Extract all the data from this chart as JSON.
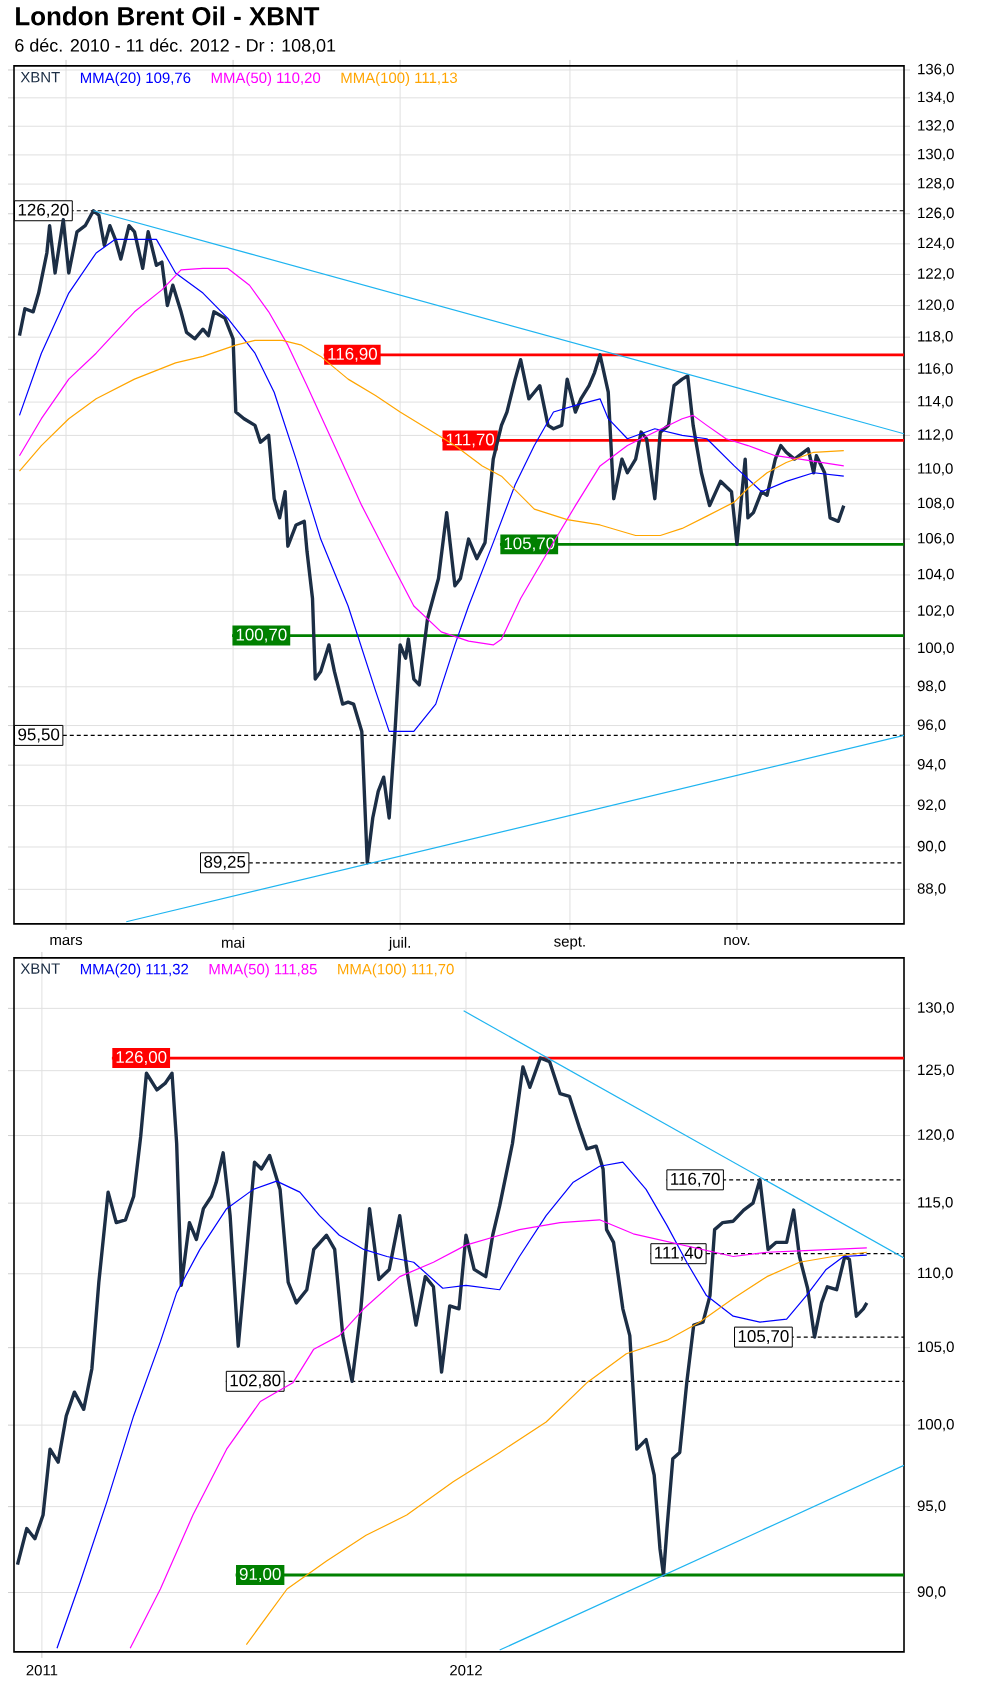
{
  "chart_data": [
    {
      "type": "line",
      "title": "London Brent Oil - XBNT",
      "subtitle": "6 déc. 2010 - 11 déc. 2012 - Dr : 108,01",
      "log": true,
      "grid": true,
      "legend": "top left",
      "xlim": [
        "2012-02-11",
        "2013-01-01"
      ],
      "ylim": [
        86.4,
        136.3
      ],
      "xticks": [
        {
          "value": "2012-03-01",
          "label": "mars"
        },
        {
          "value": "2012-05-01",
          "label": "mai"
        },
        {
          "value": "2012-07-01",
          "label": "juil."
        },
        {
          "value": "2012-09-01",
          "label": "sept."
        },
        {
          "value": "2012-11-01",
          "label": "nov."
        }
      ],
      "yticks": [
        {
          "value": 88,
          "label": "88,0"
        },
        {
          "value": 90,
          "label": "90,0"
        },
        {
          "value": 92,
          "label": "92,0"
        },
        {
          "value": 94,
          "label": "94,0"
        },
        {
          "value": 96,
          "label": "96,0"
        },
        {
          "value": 98,
          "label": "98,0"
        },
        {
          "value": 100,
          "label": "100,0"
        },
        {
          "value": 102,
          "label": "102,0"
        },
        {
          "value": 104,
          "label": "104,0"
        },
        {
          "value": 106,
          "label": "106,0"
        },
        {
          "value": 108,
          "label": "108,0"
        },
        {
          "value": 110,
          "label": "110,0"
        },
        {
          "value": 112,
          "label": "112,0"
        },
        {
          "value": 114,
          "label": "114,0"
        },
        {
          "value": 116,
          "label": "116,0"
        },
        {
          "value": 118,
          "label": "118,0"
        },
        {
          "value": 120,
          "label": "120,0"
        },
        {
          "value": 122,
          "label": "122,0"
        },
        {
          "value": 124,
          "label": "124,0"
        },
        {
          "value": 126,
          "label": "126,0"
        },
        {
          "value": 128,
          "label": "128,0"
        },
        {
          "value": 130,
          "label": "130,0"
        },
        {
          "value": 132,
          "label": "132,0"
        },
        {
          "value": 134,
          "label": "134,0"
        },
        {
          "value": 136,
          "label": "136,0"
        }
      ],
      "series": [
        {
          "name": "XBNT",
          "color": "#1c2e45",
          "x": [
            "2012-02-13",
            "2012-02-15",
            "2012-02-18",
            "2012-02-20",
            "2012-02-23",
            "2012-02-24",
            "2012-02-26",
            "2012-02-29",
            "2012-03-02",
            "2012-03-05",
            "2012-03-08",
            "2012-03-11",
            "2012-03-13",
            "2012-03-15",
            "2012-03-17",
            "2012-03-19",
            "2012-03-21",
            "2012-03-24",
            "2012-03-26",
            "2012-03-29",
            "2012-03-31",
            "2012-04-03",
            "2012-04-05",
            "2012-04-07",
            "2012-04-09",
            "2012-04-12",
            "2012-04-14",
            "2012-04-17",
            "2012-04-20",
            "2012-04-22",
            "2012-04-24",
            "2012-04-28",
            "2012-05-01",
            "2012-05-02",
            "2012-05-05",
            "2012-05-09",
            "2012-05-11",
            "2012-05-14",
            "2012-05-16",
            "2012-05-18",
            "2012-05-20",
            "2012-05-21",
            "2012-05-24",
            "2012-05-27",
            "2012-05-28",
            "2012-05-30",
            "2012-05-31",
            "2012-06-02",
            "2012-06-05",
            "2012-06-07",
            "2012-06-10",
            "2012-06-12",
            "2012-06-14",
            "2012-06-17",
            "2012-06-19",
            "2012-06-21",
            "2012-06-23",
            "2012-06-25",
            "2012-06-27",
            "2012-06-29",
            "2012-07-01",
            "2012-07-03",
            "2012-07-04",
            "2012-07-06",
            "2012-07-08",
            "2012-07-11",
            "2012-07-15",
            "2012-07-18",
            "2012-07-21",
            "2012-07-23",
            "2012-07-26",
            "2012-07-29",
            "2012-08-01",
            "2012-08-04",
            "2012-08-07",
            "2012-08-09",
            "2012-08-12",
            "2012-08-14",
            "2012-08-17",
            "2012-08-19",
            "2012-08-21",
            "2012-08-24",
            "2012-08-26",
            "2012-08-29",
            "2012-08-31",
            "2012-09-03",
            "2012-09-05",
            "2012-09-08",
            "2012-09-10",
            "2012-09-12",
            "2012-09-15",
            "2012-09-17",
            "2012-09-20",
            "2012-09-22",
            "2012-09-25",
            "2012-09-27",
            "2012-09-29",
            "2012-10-02",
            "2012-10-04",
            "2012-10-07",
            "2012-10-09",
            "2012-10-12",
            "2012-10-14",
            "2012-10-16",
            "2012-10-19",
            "2012-10-22",
            "2012-10-26",
            "2012-10-30",
            "2012-11-01",
            "2012-11-04",
            "2012-11-05",
            "2012-11-07",
            "2012-11-10",
            "2012-11-12",
            "2012-11-15",
            "2012-11-17",
            "2012-11-19",
            "2012-11-22",
            "2012-11-27",
            "2012-11-29",
            "2012-11-30",
            "2012-12-03",
            "2012-12-05",
            "2012-12-08",
            "2012-12-10"
          ],
          "values": [
            118.1,
            119.8,
            119.6,
            120.8,
            123.4,
            125.2,
            122.1,
            125.6,
            122.1,
            124.8,
            125.2,
            126.2,
            125.9,
            123.9,
            125.2,
            124.3,
            123.0,
            125.2,
            124.8,
            122.4,
            124.8,
            122.6,
            122.8,
            120.0,
            121.3,
            119.6,
            118.3,
            117.9,
            118.5,
            118.1,
            119.6,
            119.2,
            117.9,
            113.4,
            113.0,
            112.6,
            111.6,
            112.0,
            108.3,
            107.2,
            108.7,
            105.6,
            106.8,
            107.0,
            105.3,
            102.7,
            98.4,
            98.8,
            100.2,
            98.8,
            97.1,
            97.2,
            97.1,
            95.7,
            89.25,
            91.4,
            92.7,
            93.4,
            91.4,
            95.4,
            100.2,
            99.5,
            100.5,
            98.4,
            98.1,
            101.6,
            103.8,
            107.5,
            103.4,
            103.8,
            106.0,
            104.9,
            105.8,
            110.6,
            112.6,
            113.4,
            115.4,
            116.6,
            114.2,
            114.6,
            115.0,
            112.6,
            112.4,
            112.6,
            115.4,
            113.4,
            114.2,
            115.0,
            115.8,
            116.9,
            114.6,
            108.3,
            110.6,
            109.8,
            110.6,
            112.2,
            111.8,
            108.3,
            112.2,
            112.6,
            115.0,
            115.4,
            115.6,
            112.6,
            109.8,
            107.9,
            109.3,
            108.7,
            105.7,
            110.6,
            107.2,
            107.5,
            108.7,
            108.5,
            110.6,
            111.4,
            111.0,
            110.6,
            111.2,
            109.8,
            110.8,
            109.8,
            107.2,
            107.0,
            107.9
          ]
        },
        {
          "name": "MMA(20) 109,76",
          "color": "#0000ff",
          "x": [
            "2012-02-13",
            "2012-02-21",
            "2012-03-02",
            "2012-03-12",
            "2012-03-19",
            "2012-03-26",
            "2012-04-03",
            "2012-04-10",
            "2012-04-20",
            "2012-04-29",
            "2012-05-09",
            "2012-05-16",
            "2012-05-24",
            "2012-06-02",
            "2012-06-12",
            "2012-06-22",
            "2012-06-27",
            "2012-07-06",
            "2012-07-14",
            "2012-07-21",
            "2012-07-26",
            "2012-08-04",
            "2012-08-12",
            "2012-08-19",
            "2012-08-26",
            "2012-09-03",
            "2012-09-12",
            "2012-09-15",
            "2012-09-22",
            "2012-10-02",
            "2012-10-12",
            "2012-10-21",
            "2012-10-31",
            "2012-11-10",
            "2012-11-19",
            "2012-11-29",
            "2012-12-10"
          ],
          "values": [
            113.2,
            117.0,
            120.8,
            123.4,
            124.3,
            124.3,
            124.3,
            122.1,
            120.8,
            119.2,
            117.0,
            114.6,
            110.6,
            106.0,
            102.3,
            97.8,
            95.7,
            95.7,
            97.1,
            100.2,
            102.3,
            105.8,
            109.1,
            111.4,
            113.4,
            113.8,
            114.2,
            113.0,
            111.8,
            112.4,
            112.0,
            111.8,
            110.2,
            108.7,
            109.3,
            109.8,
            109.6
          ]
        },
        {
          "name": "MMA(50) 110,20",
          "color": "#ff00ff",
          "x": [
            "2012-02-13",
            "2012-02-21",
            "2012-03-02",
            "2012-03-12",
            "2012-03-26",
            "2012-04-05",
            "2012-04-12",
            "2012-04-20",
            "2012-04-29",
            "2012-05-07",
            "2012-05-14",
            "2012-05-21",
            "2012-05-28",
            "2012-06-07",
            "2012-06-17",
            "2012-06-27",
            "2012-07-06",
            "2012-07-16",
            "2012-07-26",
            "2012-08-04",
            "2012-08-07",
            "2012-08-14",
            "2012-08-24",
            "2012-09-03",
            "2012-09-12",
            "2012-09-22",
            "2012-10-02",
            "2012-10-12",
            "2012-10-16",
            "2012-10-21",
            "2012-10-28",
            "2012-11-05",
            "2012-11-15",
            "2012-11-24",
            "2012-12-10"
          ],
          "values": [
            110.8,
            113.0,
            115.4,
            117.0,
            119.6,
            121.0,
            122.3,
            122.4,
            122.4,
            121.3,
            119.6,
            117.5,
            115.0,
            111.4,
            107.9,
            104.9,
            102.3,
            100.9,
            100.4,
            100.2,
            100.5,
            102.7,
            105.3,
            107.9,
            110.2,
            111.4,
            112.2,
            113.0,
            113.2,
            112.6,
            111.8,
            111.4,
            110.8,
            110.6,
            110.2
          ]
        },
        {
          "name": "MMA(100) 111,13",
          "color": "#ffa500",
          "x": [
            "2012-02-13",
            "2012-02-21",
            "2012-03-02",
            "2012-03-12",
            "2012-03-26",
            "2012-04-10",
            "2012-04-20",
            "2012-05-02",
            "2012-05-09",
            "2012-05-19",
            "2012-05-26",
            "2012-06-02",
            "2012-06-12",
            "2012-06-22",
            "2012-07-01",
            "2012-07-11",
            "2012-07-21",
            "2012-07-31",
            "2012-08-07",
            "2012-08-19",
            "2012-08-31",
            "2012-09-12",
            "2012-09-25",
            "2012-10-04",
            "2012-10-12",
            "2012-10-21",
            "2012-10-31",
            "2012-11-05",
            "2012-11-12",
            "2012-11-19",
            "2012-11-29",
            "2012-12-10"
          ],
          "values": [
            109.9,
            111.4,
            113.0,
            114.2,
            115.4,
            116.4,
            116.8,
            117.5,
            117.8,
            117.8,
            117.5,
            116.8,
            115.4,
            114.4,
            113.4,
            112.4,
            111.4,
            110.2,
            109.6,
            107.7,
            107.1,
            106.8,
            106.2,
            106.2,
            106.6,
            107.3,
            108.1,
            108.9,
            109.8,
            110.4,
            111.0,
            111.1
          ]
        },
        {
          "color": "#1eb4f0",
          "x": [
            "2012-03-11",
            "2013-01-01"
          ],
          "values": [
            126.2,
            112.1
          ]
        },
        {
          "color": "#1eb4f0",
          "x": [
            "2012-03-23",
            "2013-01-01"
          ],
          "values": [
            86.5,
            95.5
          ]
        }
      ],
      "ref_lines": [
        {
          "axis": "y",
          "value": 126.2,
          "label": "126,20",
          "color": "#000000",
          "line_style": "dashed"
        },
        {
          "axis": "y",
          "value": 116.9,
          "label": "116,90",
          "color": "#ff0000",
          "line_style": "solid"
        },
        {
          "axis": "y",
          "value": 111.7,
          "label": "111,70",
          "color": "#ff0000",
          "line_style": "solid"
        },
        {
          "axis": "y",
          "value": 105.7,
          "label": "105,70",
          "color": "#008000",
          "line_style": "solid"
        },
        {
          "axis": "y",
          "value": 100.7,
          "label": "100,70",
          "color": "#008000",
          "line_style": "solid"
        },
        {
          "axis": "y",
          "value": 95.5,
          "label": "95,50",
          "color": "#000000",
          "line_style": "dashed"
        },
        {
          "axis": "y",
          "value": 89.25,
          "label": "89,25",
          "color": "#000000",
          "line_style": "dashed"
        }
      ]
    },
    {
      "type": "line",
      "log": true,
      "grid": true,
      "legend": "top left",
      "xlim": [
        "2010-12-08",
        "2013-01-12"
      ],
      "ylim": [
        86.7,
        134.2
      ],
      "xticks": [
        {
          "value": "2011-01-01",
          "label": "2011"
        },
        {
          "value": "2012-01-01",
          "label": "2012"
        }
      ],
      "yticks": [
        {
          "value": 90,
          "label": "90,0"
        },
        {
          "value": 95,
          "label": "95,0"
        },
        {
          "value": 100,
          "label": "100,0"
        },
        {
          "value": 105,
          "label": "105,0"
        },
        {
          "value": 110,
          "label": "110,0"
        },
        {
          "value": 115,
          "label": "115,0"
        },
        {
          "value": 120,
          "label": "120,0"
        },
        {
          "value": 125,
          "label": "125,0"
        },
        {
          "value": 130,
          "label": "130,0"
        }
      ],
      "series": [
        {
          "name": "XBNT",
          "color": "#1c2e45",
          "x": [
            "2010-12-11",
            "2010-12-19",
            "2010-12-26",
            "2011-01-02",
            "2011-01-08",
            "2011-01-15",
            "2011-01-22",
            "2011-01-29",
            "2011-02-06",
            "2011-02-13",
            "2011-02-19",
            "2011-02-27",
            "2011-03-06",
            "2011-03-14",
            "2011-03-21",
            "2011-03-27",
            "2011-04-01",
            "2011-04-10",
            "2011-04-17",
            "2011-04-23",
            "2011-04-27",
            "2011-05-01",
            "2011-05-08",
            "2011-05-14",
            "2011-05-20",
            "2011-05-27",
            "2011-05-31",
            "2011-06-06",
            "2011-06-12",
            "2011-06-19",
            "2011-06-25",
            "2011-07-03",
            "2011-07-09",
            "2011-07-16",
            "2011-07-25",
            "2011-08-01",
            "2011-08-08",
            "2011-08-17",
            "2011-08-23",
            "2011-09-03",
            "2011-09-10",
            "2011-09-17",
            "2011-09-25",
            "2011-10-02",
            "2011-10-10",
            "2011-10-18",
            "2011-10-27",
            "2011-11-05",
            "2011-11-12",
            "2011-11-19",
            "2011-11-27",
            "2011-12-04",
            "2011-12-11",
            "2011-12-18",
            "2011-12-26",
            "2012-01-01",
            "2012-01-08",
            "2012-01-18",
            "2012-01-24",
            "2012-01-30",
            "2012-02-10",
            "2012-02-19",
            "2012-02-25",
            "2012-03-05",
            "2012-03-13",
            "2012-03-22",
            "2012-03-30",
            "2012-04-08",
            "2012-04-14",
            "2012-04-22",
            "2012-04-28",
            "2012-05-01",
            "2012-05-07",
            "2012-05-15",
            "2012-05-21",
            "2012-05-27",
            "2012-06-04",
            "2012-06-11",
            "2012-06-16",
            "2012-06-19",
            "2012-06-22",
            "2012-06-27",
            "2012-07-03",
            "2012-07-09",
            "2012-07-15",
            "2012-07-23",
            "2012-07-29",
            "2012-08-02",
            "2012-08-09",
            "2012-08-18",
            "2012-08-27",
            "2012-09-04",
            "2012-09-10",
            "2012-09-17",
            "2012-09-24",
            "2012-10-03",
            "2012-10-09",
            "2012-10-14",
            "2012-10-21",
            "2012-10-27",
            "2012-11-02",
            "2012-11-07",
            "2012-11-15",
            "2012-11-22",
            "2012-11-26",
            "2012-12-02",
            "2012-12-08",
            "2012-12-11"
          ],
          "values": [
            91.6,
            93.7,
            93.1,
            94.5,
            98.5,
            97.7,
            100.6,
            102.1,
            101.0,
            103.6,
            109.4,
            115.8,
            113.6,
            113.8,
            115.5,
            119.9,
            124.8,
            123.5,
            124.0,
            124.8,
            119.4,
            109.2,
            113.6,
            112.4,
            114.6,
            115.5,
            116.5,
            118.7,
            114.1,
            105.1,
            110.3,
            118.0,
            117.5,
            118.5,
            116.0,
            109.4,
            108.0,
            108.9,
            111.7,
            112.7,
            111.7,
            105.8,
            102.8,
            107.1,
            114.6,
            109.6,
            110.3,
            114.1,
            109.8,
            106.5,
            109.8,
            109.1,
            103.4,
            107.8,
            107.6,
            112.7,
            110.3,
            109.8,
            112.7,
            114.8,
            119.4,
            125.3,
            123.7,
            126.0,
            125.7,
            123.2,
            123.0,
            120.5,
            119.0,
            119.2,
            117.5,
            113.1,
            112.2,
            107.6,
            105.8,
            98.5,
            99.1,
            96.9,
            92.5,
            91.0,
            93.7,
            97.9,
            98.3,
            102.7,
            106.5,
            106.7,
            108.5,
            113.1,
            113.6,
            113.7,
            114.5,
            115.0,
            116.7,
            111.7,
            112.2,
            112.2,
            114.5,
            111.2,
            109.0,
            105.7,
            108.0,
            109.1,
            108.9,
            111.2,
            111.0,
            107.1,
            107.6,
            108.0
          ]
        },
        {
          "name": "MMA(20) 111,32",
          "color": "#0000ff",
          "x": [
            "2011-01-14",
            "2011-02-03",
            "2011-02-26",
            "2011-03-21",
            "2011-04-13",
            "2011-04-27",
            "2011-05-17",
            "2011-06-09",
            "2011-07-02",
            "2011-07-22",
            "2011-08-11",
            "2011-08-28",
            "2011-09-14",
            "2011-10-05",
            "2011-10-25",
            "2011-11-17",
            "2011-12-12",
            "2012-01-01",
            "2012-01-30",
            "2012-02-16",
            "2012-03-10",
            "2012-04-02",
            "2012-04-25",
            "2012-05-15",
            "2012-06-04",
            "2012-06-22",
            "2012-07-09",
            "2012-07-26",
            "2012-08-18",
            "2012-09-10",
            "2012-10-03",
            "2012-10-20",
            "2012-11-06",
            "2012-11-21",
            "2012-12-11"
          ],
          "values": [
            86.9,
            90.6,
            95.3,
            100.6,
            105.4,
            108.7,
            111.7,
            114.6,
            116.0,
            116.6,
            115.8,
            114.1,
            112.7,
            111.7,
            111.2,
            110.8,
            109.0,
            109.2,
            108.9,
            111.2,
            114.1,
            116.5,
            117.7,
            118.0,
            116.0,
            113.4,
            110.8,
            108.5,
            107.1,
            106.7,
            106.9,
            108.5,
            110.3,
            111.2,
            111.3
          ]
        },
        {
          "name": "MMA(50) 111,85",
          "color": "#ff00ff",
          "x": [
            "2011-03-18",
            "2011-04-13",
            "2011-05-11",
            "2011-06-09",
            "2011-07-08",
            "2011-08-05",
            "2011-08-23",
            "2011-09-14",
            "2011-10-05",
            "2011-11-05",
            "2011-12-04",
            "2012-01-01",
            "2012-01-30",
            "2012-02-16",
            "2012-03-22",
            "2012-04-25",
            "2012-05-24",
            "2012-06-22",
            "2012-07-20",
            "2012-08-18",
            "2012-09-16",
            "2012-10-14",
            "2012-11-12",
            "2012-12-11"
          ],
          "values": [
            86.9,
            90.2,
            94.5,
            98.5,
            101.5,
            102.7,
            104.9,
            105.8,
            107.6,
            109.8,
            110.8,
            112.0,
            112.7,
            113.1,
            113.6,
            113.8,
            112.8,
            null,
            null,
            111.2,
            111.5,
            111.6,
            111.7,
            111.8
          ]
        },
        {
          "name": "MMA(100) 111,70",
          "color": "#ffa500",
          "x": [
            "2011-06-26",
            "2011-07-31",
            "2011-09-03",
            "2011-10-07",
            "2011-11-11",
            "2011-12-21",
            "2012-01-30",
            "2012-03-10",
            "2012-04-14",
            "2012-05-18",
            "2012-06-22",
            "2012-07-20",
            "2012-08-18",
            "2012-09-16",
            "2012-10-14",
            "2012-11-12",
            "2012-12-11"
          ],
          "values": [
            87.1,
            90.2,
            91.8,
            93.3,
            94.5,
            96.5,
            98.3,
            100.2,
            102.7,
            104.6,
            105.5,
            106.7,
            108.3,
            109.8,
            110.8,
            111.2,
            111.5
          ]
        },
        {
          "color": "#1eb4f0",
          "x": [
            "2011-12-30",
            "2013-01-12"
          ],
          "values": [
            129.8,
            111.1
          ]
        },
        {
          "color": "#1eb4f0",
          "x": [
            "2012-01-30",
            "2013-01-12"
          ],
          "values": [
            86.8,
            97.5
          ]
        }
      ],
      "ref_lines": [
        {
          "axis": "y",
          "value": 126.0,
          "label": "126,00",
          "color": "#ff0000",
          "line_style": "solid"
        },
        {
          "axis": "y",
          "value": 116.7,
          "label": "116,70",
          "color": "#000000",
          "line_style": "dashed"
        },
        {
          "axis": "y",
          "value": 111.4,
          "label": "111,40",
          "color": "#000000",
          "line_style": "dashed"
        },
        {
          "axis": "y",
          "value": 105.7,
          "label": "105,70",
          "color": "#000000",
          "line_style": "dashed"
        },
        {
          "axis": "y",
          "value": 102.8,
          "label": "102,80",
          "color": "#000000",
          "line_style": "dashed"
        },
        {
          "axis": "y",
          "value": 91.0,
          "label": "91,00",
          "color": "#008000",
          "line_style": "solid"
        }
      ]
    }
  ]
}
